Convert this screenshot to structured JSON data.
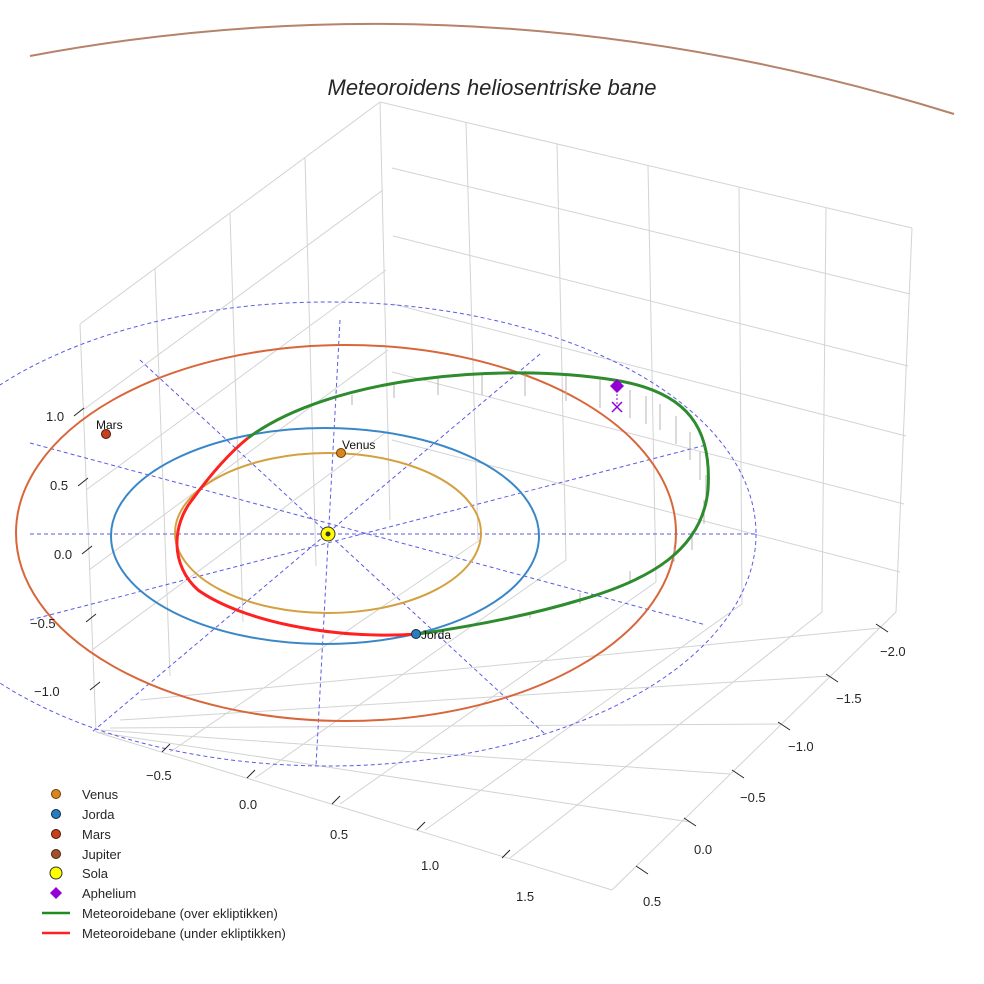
{
  "chart_data": {
    "type": "line",
    "projection": "3d",
    "title": "Meteoroidens heliosentriske bane",
    "axes": {
      "x": {
        "ticks": [
          "−2.0",
          "−1.5",
          "−1.0",
          "−0.5",
          "0.0",
          "0.5"
        ],
        "tick_values": [
          -2.0,
          -1.5,
          -1.0,
          -0.5,
          0.0,
          0.5
        ]
      },
      "y": {
        "ticks": [
          "−0.5",
          "0.0",
          "0.5",
          "1.0",
          "1.5"
        ],
        "tick_values": [
          -0.5,
          0.0,
          0.5,
          1.0,
          1.5
        ]
      },
      "z": {
        "ticks": [
          "1.0",
          "0.5",
          "0.0",
          "−0.5",
          "−1.0"
        ],
        "tick_values": [
          1.0,
          0.5,
          0.0,
          -0.5,
          -1.0
        ]
      }
    },
    "grid": true,
    "legend_placement": "bottom-left",
    "orbits": [
      {
        "name": "Venus",
        "a_au": 0.72,
        "color": "#d4a040"
      },
      {
        "name": "Jorda",
        "a_au": 1.0,
        "color": "#3a87c8"
      },
      {
        "name": "Mars",
        "a_au": 1.52,
        "color": "#d9663a"
      },
      {
        "name": "Jupiter",
        "a_au": 5.2,
        "color": "#b5826a"
      }
    ],
    "bodies": [
      {
        "name": "Venus",
        "label": "Venus",
        "color": "#d9861c"
      },
      {
        "name": "Jorda",
        "label": "Jorda",
        "color": "#2b7bbf"
      },
      {
        "name": "Mars",
        "label": "Mars",
        "color": "#c4431b"
      },
      {
        "name": "Sola",
        "label": "",
        "color": "#ffff00"
      },
      {
        "name": "Aphelium",
        "label": "",
        "color": "#9400d3"
      }
    ],
    "meteoroid_orbit": {
      "above_ecliptic_color": "#2e8b2e",
      "below_ecliptic_color": "#ff2020"
    },
    "legend": [
      {
        "label": "Venus",
        "kind": "dot",
        "color": "#d9861c"
      },
      {
        "label": "Jorda",
        "kind": "dot",
        "color": "#2b7bbf"
      },
      {
        "label": "Mars",
        "kind": "dot",
        "color": "#c4431b"
      },
      {
        "label": "Jupiter",
        "kind": "dot",
        "color": "#a0522d"
      },
      {
        "label": "Sola",
        "kind": "sun",
        "color": "#ffff00"
      },
      {
        "label": "Aphelium",
        "kind": "diamond",
        "color": "#9400d3"
      },
      {
        "label": "Meteoroidebane (over ekliptikken)",
        "kind": "line",
        "color": "#1e8c1e"
      },
      {
        "label": "Meteoroidebane (under ekliptikken)",
        "kind": "line",
        "color": "#ff2020"
      }
    ]
  }
}
